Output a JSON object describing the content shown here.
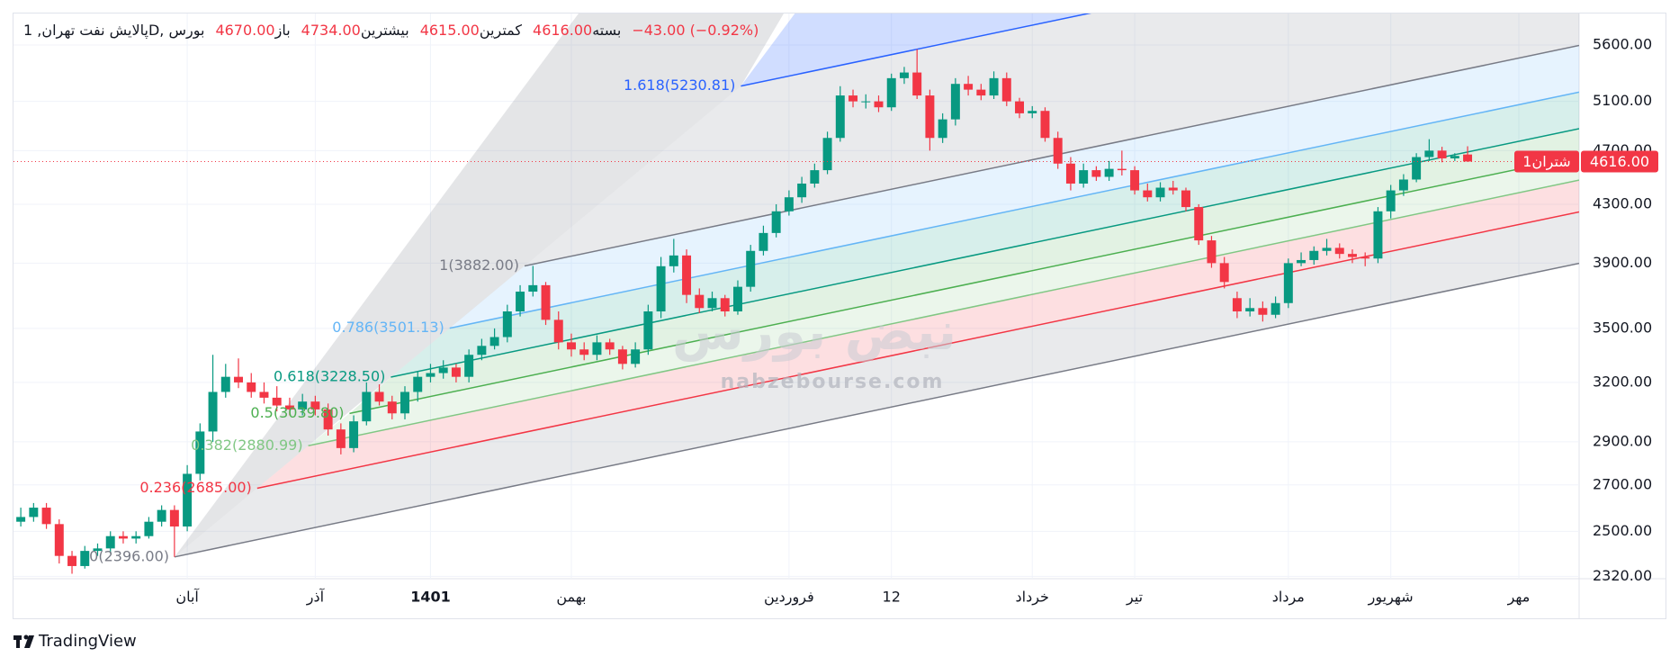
{
  "chart_data": {
    "type": "candlestick",
    "header": {
      "title": "پالایش نفت تهران, 1D, بورس",
      "items": [
        {
          "label": "باز",
          "value": "4670.00"
        },
        {
          "label": "بیشترین",
          "value": "4734.00"
        },
        {
          "label": "کمترین",
          "value": "4615.00"
        },
        {
          "label": "بسته",
          "value": "4616.00"
        }
      ],
      "change": "−43.00 (−0.92%)"
    },
    "categories": [
      null,
      null,
      null,
      null,
      null,
      null,
      null,
      null,
      null,
      null,
      null,
      null,
      null,
      "آبان",
      null,
      null,
      null,
      null,
      null,
      null,
      null,
      null,
      null,
      "آذر",
      null,
      null,
      null,
      null,
      null,
      null,
      null,
      null,
      "1401",
      null,
      null,
      null,
      null,
      null,
      null,
      null,
      null,
      null,
      null,
      "بهمن",
      null,
      null,
      null,
      null,
      null,
      null,
      null,
      null,
      null,
      null,
      null,
      null,
      null,
      null,
      null,
      null,
      "فروردین",
      null,
      null,
      null,
      null,
      null,
      null,
      null,
      "12",
      null,
      null,
      null,
      null,
      null,
      null,
      null,
      null,
      null,
      null,
      "خرداد",
      null,
      null,
      null,
      null,
      null,
      null,
      null,
      "تیر",
      null,
      null,
      null,
      null,
      null,
      null,
      null,
      null,
      null,
      null,
      null,
      "مرداد",
      null,
      null,
      null,
      null,
      null,
      null,
      null,
      "شهریور",
      null,
      null,
      null,
      null,
      null,
      null,
      null,
      null,
      null,
      "مهر",
      null,
      null,
      null,
      null
    ],
    "open": [
      2540,
      2560,
      2600,
      2530,
      2400,
      2360,
      2420,
      2430,
      2480,
      2470,
      2480,
      2540,
      2590,
      2520,
      2750,
      2950,
      3150,
      3230,
      3200,
      3150,
      3120,
      3080,
      3060,
      3100,
      3060,
      2960,
      2870,
      3000,
      3150,
      3100,
      3040,
      3150,
      3230,
      3250,
      3280,
      3230,
      3350,
      3400,
      3450,
      3600,
      3720,
      3760,
      3550,
      3420,
      3380,
      3350,
      3420,
      3380,
      3300,
      3380,
      3600,
      3880,
      3950,
      3700,
      3620,
      3680,
      3600,
      3750,
      3980,
      4100,
      4250,
      4350,
      4450,
      4550,
      4800,
      5150,
      5100,
      5100,
      5050,
      5300,
      5350,
      5150,
      4800,
      4950,
      5250,
      5200,
      5150,
      5300,
      5100,
      5000,
      5020,
      4800,
      4600,
      4450,
      4550,
      4500,
      4560,
      4550,
      4400,
      4350,
      4420,
      4400,
      4280,
      4050,
      3900,
      3680,
      3600,
      3620,
      3580,
      3650,
      3900,
      3920,
      3980,
      4000,
      3960,
      3940,
      3930,
      4250,
      4400,
      4480,
      4650,
      4700,
      4640,
      4670,
      null,
      null,
      null,
      null,
      null,
      null,
      null,
      null
    ],
    "high": [
      2600,
      2620,
      2620,
      2550,
      2420,
      2440,
      2450,
      2500,
      2500,
      2500,
      2560,
      2610,
      2610,
      2790,
      2990,
      3350,
      3300,
      3330,
      3250,
      3200,
      3180,
      3120,
      3140,
      3130,
      3090,
      2990,
      3030,
      3200,
      3190,
      3130,
      3180,
      3260,
      3300,
      3320,
      3300,
      3380,
      3440,
      3500,
      3640,
      3760,
      3882,
      3780,
      3600,
      3470,
      3420,
      3460,
      3440,
      3400,
      3420,
      3640,
      3940,
      4060,
      3990,
      3740,
      3720,
      3700,
      3790,
      4020,
      4150,
      4300,
      4400,
      4500,
      4600,
      4850,
      5230,
      5200,
      5160,
      5150,
      5340,
      5400,
      5560,
      5200,
      5000,
      5300,
      5320,
      5250,
      5360,
      5350,
      5130,
      5060,
      5050,
      4850,
      4650,
      4600,
      4580,
      4620,
      4700,
      4580,
      4450,
      4460,
      4470,
      4420,
      4300,
      4080,
      3940,
      3720,
      3680,
      3660,
      3690,
      3930,
      3970,
      4010,
      4060,
      4030,
      3990,
      3970,
      4280,
      4440,
      4520,
      4680,
      4790,
      4730,
      4680,
      4734,
      null,
      null,
      null,
      null,
      null,
      null,
      null,
      null
    ],
    "low": [
      2520,
      2540,
      2510,
      2370,
      2330,
      2350,
      2400,
      2410,
      2450,
      2450,
      2470,
      2520,
      2396,
      2500,
      2720,
      2900,
      3120,
      3170,
      3120,
      3090,
      3050,
      3030,
      3030,
      3030,
      2930,
      2840,
      2850,
      2980,
      3080,
      3010,
      3010,
      3100,
      3200,
      3220,
      3200,
      3200,
      3320,
      3380,
      3420,
      3570,
      3690,
      3520,
      3380,
      3340,
      3320,
      3320,
      3350,
      3270,
      3280,
      3350,
      3560,
      3840,
      3650,
      3590,
      3600,
      3570,
      3580,
      3720,
      3950,
      4070,
      4220,
      4310,
      4420,
      4520,
      4770,
      5050,
      5040,
      5010,
      5020,
      5250,
      5120,
      4700,
      4760,
      4900,
      5150,
      5110,
      5120,
      5060,
      4960,
      4960,
      4770,
      4560,
      4400,
      4420,
      4470,
      4470,
      4510,
      4370,
      4320,
      4320,
      4370,
      4250,
      4020,
      3870,
      3740,
      3560,
      3570,
      3540,
      3560,
      3620,
      3880,
      3890,
      3950,
      3930,
      3900,
      3880,
      3900,
      4200,
      4360,
      4460,
      4620,
      4610,
      4620,
      4615,
      null,
      null,
      null,
      null,
      null,
      null,
      null,
      null
    ],
    "close": [
      2560,
      2600,
      2530,
      2400,
      2360,
      2420,
      2430,
      2480,
      2470,
      2480,
      2540,
      2590,
      2520,
      2750,
      2950,
      3150,
      3230,
      3200,
      3150,
      3120,
      3080,
      3060,
      3100,
      3060,
      2960,
      2870,
      3000,
      3150,
      3100,
      3040,
      3150,
      3230,
      3250,
      3280,
      3230,
      3350,
      3400,
      3450,
      3600,
      3720,
      3760,
      3550,
      3420,
      3380,
      3350,
      3420,
      3380,
      3300,
      3380,
      3600,
      3880,
      3950,
      3700,
      3620,
      3680,
      3600,
      3750,
      3980,
      4100,
      4250,
      4350,
      4450,
      4550,
      4800,
      5150,
      5100,
      5100,
      5050,
      5300,
      5350,
      5150,
      4800,
      4950,
      5250,
      5200,
      5150,
      5300,
      5100,
      5000,
      5020,
      4800,
      4600,
      4450,
      4550,
      4500,
      4560,
      4550,
      4400,
      4350,
      4420,
      4400,
      4280,
      4050,
      3900,
      3780,
      3600,
      3620,
      3580,
      3650,
      3900,
      3920,
      3980,
      4000,
      3960,
      3940,
      3930,
      4250,
      4400,
      4480,
      4650,
      4700,
      4640,
      4659,
      4616,
      null,
      null,
      null,
      null,
      null,
      null,
      null,
      null
    ],
    "up_color": "#089981",
    "down_color": "#f23645",
    "log_scale": true,
    "ylim": [
      2311,
      5900
    ],
    "yticks": [
      {
        "value": 2320,
        "label": "2320.00"
      },
      {
        "value": 2500,
        "label": "2500.00"
      },
      {
        "value": 2700,
        "label": "2700.00"
      },
      {
        "value": 2900,
        "label": "2900.00"
      },
      {
        "value": 3200,
        "label": "3200.00"
      },
      {
        "value": 3500,
        "label": "3500.00"
      },
      {
        "value": 3900,
        "label": "3900.00"
      },
      {
        "value": 4300,
        "label": "4300.00"
      },
      {
        "value": 4700,
        "label": "4700.00"
      },
      {
        "value": 5100,
        "label": "5100.00"
      },
      {
        "value": 5600,
        "label": "5600.00"
      }
    ],
    "grid": true,
    "fib_levels": [
      {
        "level": 0,
        "value": 2396,
        "label": "0(2396.00)",
        "color": "#787b86"
      },
      {
        "level": 0.236,
        "value": 2685,
        "label": "0.236(2685.00)",
        "color": "#f23645"
      },
      {
        "level": 0.382,
        "value": 2880.99,
        "label": "0.382(2880.99)",
        "color": "#81c784"
      },
      {
        "level": 0.5,
        "value": 3039.8,
        "label": "0.5(3039.80)",
        "color": "#4caf50"
      },
      {
        "level": 0.618,
        "value": 3228.5,
        "label": "0.618(3228.50)",
        "color": "#089981"
      },
      {
        "level": 0.786,
        "value": 3501.13,
        "label": "0.786(3501.13)",
        "color": "#64b5f6"
      },
      {
        "level": 1,
        "value": 3882,
        "label": "1(3882.00)",
        "color": "#787b86"
      },
      {
        "level": 1.618,
        "value": 5230.81,
        "label": "1.618(5230.81)",
        "color": "#2962ff"
      }
    ],
    "last_price": {
      "value": 4616,
      "label": "4616.00",
      "color": "#f23645"
    },
    "symbol_tag": "شتران1",
    "watermark": {
      "logo": "نبض بورس",
      "site": "nabzebourse.com"
    },
    "brand": "TradingView"
  }
}
